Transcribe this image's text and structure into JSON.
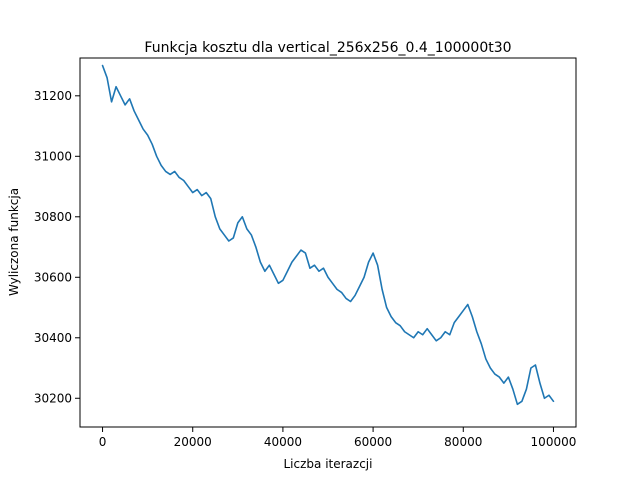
{
  "chart_data": {
    "type": "line",
    "title": "Funkcja kosztu dla vertical_256x256_0.4_100000t30",
    "xlabel": "Liczba iterazcji",
    "ylabel": "Wyliczona funkcja",
    "xlim": [
      -5000,
      105000
    ],
    "ylim": [
      30105,
      31325
    ],
    "xticks": [
      0,
      20000,
      40000,
      60000,
      80000,
      100000
    ],
    "xtick_labels": [
      "0",
      "20000",
      "40000",
      "60000",
      "80000",
      "100000"
    ],
    "yticks": [
      30200,
      30400,
      30600,
      30800,
      31000,
      31200
    ],
    "ytick_labels": [
      "30200",
      "30400",
      "30600",
      "30800",
      "31000",
      "31200"
    ],
    "grid": false,
    "series": [
      {
        "color": "#1f77b4",
        "x": [
          0,
          1000,
          2000,
          3000,
          4000,
          5000,
          6000,
          7000,
          8000,
          9000,
          10000,
          11000,
          12000,
          13000,
          14000,
          15000,
          16000,
          17000,
          18000,
          19000,
          20000,
          21000,
          22000,
          23000,
          24000,
          25000,
          26000,
          27000,
          28000,
          29000,
          30000,
          31000,
          32000,
          33000,
          34000,
          35000,
          36000,
          37000,
          38000,
          39000,
          40000,
          41000,
          42000,
          43000,
          44000,
          45000,
          46000,
          47000,
          48000,
          49000,
          50000,
          51000,
          52000,
          53000,
          54000,
          55000,
          56000,
          57000,
          58000,
          59000,
          60000,
          61000,
          62000,
          63000,
          64000,
          65000,
          66000,
          67000,
          68000,
          69000,
          70000,
          71000,
          72000,
          73000,
          74000,
          75000,
          76000,
          77000,
          78000,
          79000,
          80000,
          81000,
          82000,
          83000,
          84000,
          85000,
          86000,
          87000,
          88000,
          89000,
          90000,
          91000,
          92000,
          93000,
          94000,
          95000,
          96000,
          97000,
          98000,
          99000,
          100000
        ],
        "y": [
          31300,
          31260,
          31180,
          31230,
          31200,
          31170,
          31190,
          31150,
          31120,
          31090,
          31070,
          31040,
          31000,
          30970,
          30950,
          30940,
          30950,
          30930,
          30920,
          30900,
          30880,
          30890,
          30870,
          30880,
          30860,
          30800,
          30760,
          30740,
          30720,
          30730,
          30780,
          30800,
          30760,
          30740,
          30700,
          30650,
          30620,
          30640,
          30610,
          30580,
          30590,
          30620,
          30650,
          30670,
          30690,
          30680,
          30630,
          30640,
          30620,
          30630,
          30600,
          30580,
          30560,
          30550,
          30530,
          30520,
          30540,
          30570,
          30600,
          30650,
          30680,
          30640,
          30560,
          30500,
          30470,
          30450,
          30440,
          30420,
          30410,
          30400,
          30420,
          30410,
          30430,
          30410,
          30390,
          30400,
          30420,
          30410,
          30450,
          30470,
          30490,
          30510,
          30470,
          30420,
          30380,
          30330,
          30300,
          30280,
          30270,
          30250,
          30270,
          30230,
          30180,
          30190,
          30230,
          30300,
          30310,
          30250,
          30200,
          30210,
          30190
        ]
      }
    ]
  }
}
